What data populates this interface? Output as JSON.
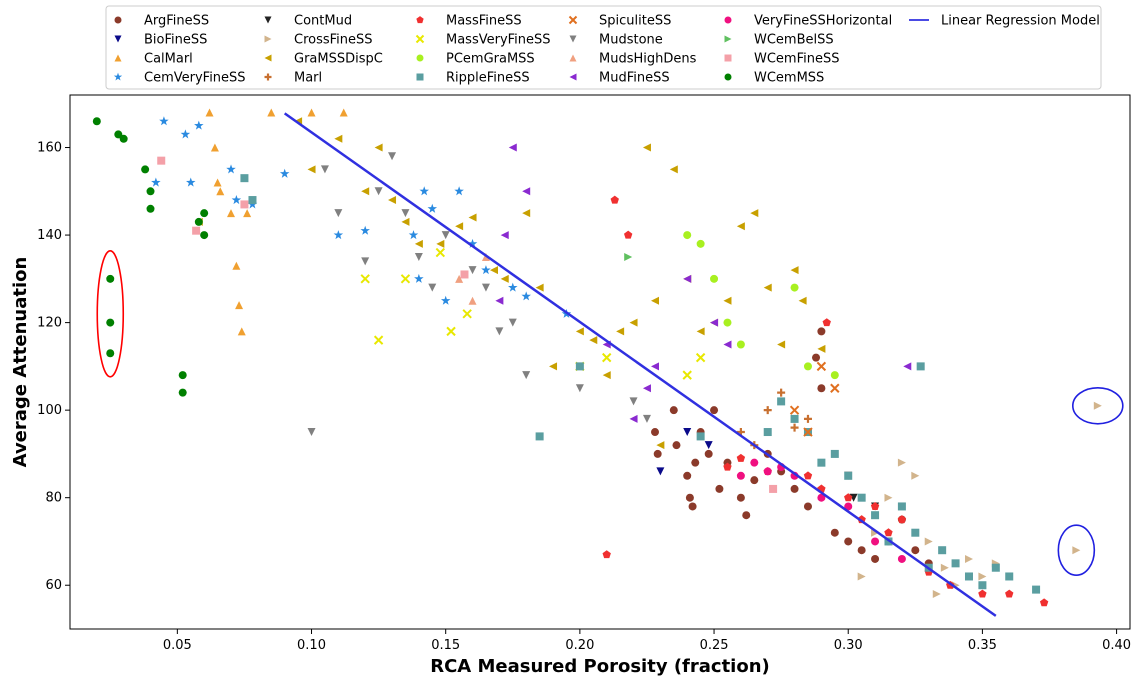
{
  "chart_data": {
    "type": "scatter",
    "title": "",
    "xlabel": "RCA Measured Porosity (fraction)",
    "ylabel": "Average Attenuation",
    "xlim": [
      0.01,
      0.405
    ],
    "ylim": [
      50,
      172
    ],
    "xticks": [
      "0.05",
      "0.10",
      "0.15",
      "0.20",
      "0.25",
      "0.30",
      "0.35",
      "0.40"
    ],
    "yticks": [
      "60",
      "80",
      "100",
      "120",
      "140",
      "160"
    ],
    "grid": false,
    "legend_position": "top",
    "series": [
      {
        "name": "ArgFineSS",
        "color": "#8b3a2a",
        "marker": "circle",
        "points": [
          [
            0.228,
            95
          ],
          [
            0.229,
            90
          ],
          [
            0.235,
            100
          ],
          [
            0.236,
            92
          ],
          [
            0.24,
            85
          ],
          [
            0.241,
            80
          ],
          [
            0.242,
            78
          ],
          [
            0.243,
            88
          ],
          [
            0.245,
            95
          ],
          [
            0.248,
            90
          ],
          [
            0.25,
            100
          ],
          [
            0.252,
            82
          ],
          [
            0.255,
            88
          ],
          [
            0.26,
            80
          ],
          [
            0.262,
            76
          ],
          [
            0.265,
            84
          ],
          [
            0.27,
            90
          ],
          [
            0.275,
            86
          ],
          [
            0.28,
            82
          ],
          [
            0.285,
            78
          ],
          [
            0.288,
            112
          ],
          [
            0.29,
            118
          ],
          [
            0.29,
            105
          ],
          [
            0.295,
            72
          ],
          [
            0.3,
            70
          ],
          [
            0.305,
            68
          ],
          [
            0.31,
            66
          ],
          [
            0.315,
            70
          ],
          [
            0.32,
            75
          ],
          [
            0.325,
            68
          ],
          [
            0.33,
            65
          ]
        ]
      },
      {
        "name": "BioFineSS",
        "color": "#0a0a8a",
        "marker": "triangle-down",
        "points": [
          [
            0.23,
            86
          ],
          [
            0.24,
            95
          ],
          [
            0.248,
            92
          ]
        ]
      },
      {
        "name": "CalMarl",
        "color": "#f0a030",
        "marker": "triangle-up",
        "points": [
          [
            0.062,
            168
          ],
          [
            0.064,
            160
          ],
          [
            0.065,
            152
          ],
          [
            0.066,
            150
          ],
          [
            0.07,
            145
          ],
          [
            0.072,
            133
          ],
          [
            0.073,
            124
          ],
          [
            0.074,
            118
          ],
          [
            0.076,
            145
          ],
          [
            0.085,
            168
          ],
          [
            0.1,
            168
          ],
          [
            0.112,
            168
          ]
        ]
      },
      {
        "name": "CemVeryFineSS",
        "color": "#2a8ae0",
        "marker": "star",
        "points": [
          [
            0.042,
            152
          ],
          [
            0.045,
            166
          ],
          [
            0.053,
            163
          ],
          [
            0.055,
            152
          ],
          [
            0.058,
            165
          ],
          [
            0.07,
            155
          ],
          [
            0.072,
            148
          ],
          [
            0.078,
            147
          ],
          [
            0.09,
            154
          ],
          [
            0.11,
            140
          ],
          [
            0.12,
            141
          ],
          [
            0.138,
            140
          ],
          [
            0.14,
            130
          ],
          [
            0.142,
            150
          ],
          [
            0.145,
            146
          ],
          [
            0.15,
            125
          ],
          [
            0.155,
            150
          ],
          [
            0.16,
            138
          ],
          [
            0.165,
            132
          ],
          [
            0.175,
            128
          ],
          [
            0.18,
            126
          ],
          [
            0.195,
            122
          ]
        ]
      },
      {
        "name": "ContMud",
        "color": "#222222",
        "marker": "triangle-down",
        "points": [
          [
            0.3,
            85
          ],
          [
            0.302,
            80
          ],
          [
            0.31,
            78
          ]
        ]
      },
      {
        "name": "CrossFineSS",
        "color": "#d2b48c",
        "marker": "triangle-right",
        "points": [
          [
            0.305,
            62
          ],
          [
            0.31,
            72
          ],
          [
            0.315,
            80
          ],
          [
            0.32,
            88
          ],
          [
            0.325,
            85
          ],
          [
            0.33,
            70
          ],
          [
            0.333,
            58
          ],
          [
            0.336,
            64
          ],
          [
            0.34,
            60
          ],
          [
            0.345,
            66
          ],
          [
            0.35,
            62
          ],
          [
            0.355,
            65
          ],
          [
            0.385,
            68
          ],
          [
            0.393,
            101
          ]
        ]
      },
      {
        "name": "GraMSSDispC",
        "color": "#c8a000",
        "marker": "triangle-left",
        "points": [
          [
            0.058,
            143
          ],
          [
            0.095,
            166
          ],
          [
            0.1,
            155
          ],
          [
            0.11,
            162
          ],
          [
            0.12,
            150
          ],
          [
            0.125,
            160
          ],
          [
            0.13,
            148
          ],
          [
            0.135,
            143
          ],
          [
            0.14,
            138
          ],
          [
            0.148,
            138
          ],
          [
            0.155,
            142
          ],
          [
            0.16,
            144
          ],
          [
            0.168,
            132
          ],
          [
            0.172,
            130
          ],
          [
            0.18,
            145
          ],
          [
            0.185,
            128
          ],
          [
            0.19,
            110
          ],
          [
            0.2,
            118
          ],
          [
            0.205,
            116
          ],
          [
            0.21,
            108
          ],
          [
            0.215,
            118
          ],
          [
            0.22,
            120
          ],
          [
            0.225,
            160
          ],
          [
            0.228,
            125
          ],
          [
            0.23,
            92
          ],
          [
            0.235,
            155
          ],
          [
            0.24,
            130
          ],
          [
            0.245,
            118
          ],
          [
            0.25,
            120
          ],
          [
            0.255,
            125
          ],
          [
            0.26,
            142
          ],
          [
            0.265,
            145
          ],
          [
            0.27,
            128
          ],
          [
            0.275,
            115
          ],
          [
            0.28,
            132
          ],
          [
            0.283,
            125
          ],
          [
            0.29,
            114
          ]
        ]
      },
      {
        "name": "Marl",
        "color": "#c87030",
        "marker": "plus",
        "points": [
          [
            0.26,
            95
          ],
          [
            0.265,
            92
          ],
          [
            0.27,
            100
          ],
          [
            0.275,
            104
          ],
          [
            0.28,
            96
          ],
          [
            0.285,
            98
          ]
        ]
      },
      {
        "name": "MassFineSS",
        "color": "#f03030",
        "marker": "pentagon",
        "points": [
          [
            0.21,
            67
          ],
          [
            0.213,
            148
          ],
          [
            0.218,
            140
          ],
          [
            0.255,
            87
          ],
          [
            0.26,
            89
          ],
          [
            0.27,
            86
          ],
          [
            0.285,
            85
          ],
          [
            0.29,
            82
          ],
          [
            0.292,
            120
          ],
          [
            0.3,
            80
          ],
          [
            0.305,
            75
          ],
          [
            0.31,
            78
          ],
          [
            0.315,
            72
          ],
          [
            0.32,
            75
          ],
          [
            0.33,
            63
          ],
          [
            0.338,
            60
          ],
          [
            0.35,
            58
          ],
          [
            0.36,
            58
          ],
          [
            0.373,
            56
          ]
        ]
      },
      {
        "name": "MassVeryFineSS",
        "color": "#e8e800",
        "marker": "x",
        "points": [
          [
            0.12,
            130
          ],
          [
            0.125,
            116
          ],
          [
            0.135,
            130
          ],
          [
            0.148,
            136
          ],
          [
            0.152,
            118
          ],
          [
            0.158,
            122
          ],
          [
            0.2,
            110
          ],
          [
            0.21,
            112
          ],
          [
            0.24,
            108
          ],
          [
            0.245,
            112
          ]
        ]
      },
      {
        "name": "PCemGraMSS",
        "color": "#a8f020",
        "marker": "circle",
        "points": [
          [
            0.24,
            140
          ],
          [
            0.245,
            138
          ],
          [
            0.25,
            130
          ],
          [
            0.255,
            120
          ],
          [
            0.26,
            115
          ],
          [
            0.28,
            128
          ],
          [
            0.285,
            110
          ],
          [
            0.295,
            108
          ]
        ]
      },
      {
        "name": "RippleFineSS",
        "color": "#5a9ea0",
        "marker": "square",
        "points": [
          [
            0.075,
            153
          ],
          [
            0.078,
            148
          ],
          [
            0.185,
            94
          ],
          [
            0.2,
            110
          ],
          [
            0.245,
            94
          ],
          [
            0.27,
            95
          ],
          [
            0.275,
            102
          ],
          [
            0.28,
            98
          ],
          [
            0.285,
            95
          ],
          [
            0.29,
            88
          ],
          [
            0.295,
            90
          ],
          [
            0.3,
            85
          ],
          [
            0.305,
            80
          ],
          [
            0.31,
            76
          ],
          [
            0.315,
            70
          ],
          [
            0.32,
            78
          ],
          [
            0.325,
            72
          ],
          [
            0.327,
            110
          ],
          [
            0.33,
            64
          ],
          [
            0.335,
            68
          ],
          [
            0.34,
            65
          ],
          [
            0.345,
            62
          ],
          [
            0.35,
            60
          ],
          [
            0.355,
            64
          ],
          [
            0.36,
            62
          ],
          [
            0.37,
            59
          ]
        ]
      },
      {
        "name": "SpiculiteSS",
        "color": "#e07020",
        "marker": "x",
        "points": [
          [
            0.28,
            100
          ],
          [
            0.285,
            95
          ],
          [
            0.29,
            110
          ],
          [
            0.295,
            105
          ]
        ]
      },
      {
        "name": "Mudstone",
        "color": "#808080",
        "marker": "triangle-down",
        "points": [
          [
            0.1,
            95
          ],
          [
            0.105,
            155
          ],
          [
            0.11,
            145
          ],
          [
            0.12,
            134
          ],
          [
            0.125,
            150
          ],
          [
            0.13,
            158
          ],
          [
            0.135,
            145
          ],
          [
            0.14,
            135
          ],
          [
            0.145,
            128
          ],
          [
            0.15,
            140
          ],
          [
            0.16,
            132
          ],
          [
            0.165,
            128
          ],
          [
            0.17,
            118
          ],
          [
            0.175,
            120
          ],
          [
            0.18,
            108
          ],
          [
            0.2,
            105
          ],
          [
            0.22,
            102
          ],
          [
            0.225,
            98
          ]
        ]
      },
      {
        "name": "MudsHighDens",
        "color": "#f0a080",
        "marker": "triangle-up",
        "points": [
          [
            0.155,
            130
          ],
          [
            0.16,
            125
          ],
          [
            0.165,
            135
          ]
        ]
      },
      {
        "name": "MudFineSS",
        "color": "#8a2ad0",
        "marker": "triangle-left",
        "points": [
          [
            0.17,
            125
          ],
          [
            0.172,
            140
          ],
          [
            0.175,
            160
          ],
          [
            0.18,
            150
          ],
          [
            0.21,
            115
          ],
          [
            0.22,
            98
          ],
          [
            0.225,
            105
          ],
          [
            0.228,
            110
          ],
          [
            0.24,
            130
          ],
          [
            0.25,
            120
          ],
          [
            0.255,
            115
          ],
          [
            0.322,
            110
          ]
        ]
      },
      {
        "name": "VeryFineSSHorizontal",
        "color": "#f01080",
        "marker": "circle",
        "points": [
          [
            0.26,
            85
          ],
          [
            0.265,
            88
          ],
          [
            0.27,
            86
          ],
          [
            0.275,
            87
          ],
          [
            0.28,
            85
          ],
          [
            0.29,
            80
          ],
          [
            0.3,
            78
          ],
          [
            0.31,
            70
          ],
          [
            0.32,
            66
          ]
        ]
      },
      {
        "name": "WCemBelSS",
        "color": "#60c060",
        "marker": "triangle-right",
        "points": [
          [
            0.218,
            135
          ]
        ]
      },
      {
        "name": "WCemFineSS",
        "color": "#f4a0a8",
        "marker": "square",
        "points": [
          [
            0.044,
            157
          ],
          [
            0.057,
            141
          ],
          [
            0.075,
            147
          ],
          [
            0.157,
            131
          ],
          [
            0.272,
            82
          ]
        ]
      },
      {
        "name": "WCemMSS",
        "color": "#008000",
        "marker": "circle",
        "points": [
          [
            0.02,
            166
          ],
          [
            0.025,
            130
          ],
          [
            0.025,
            120
          ],
          [
            0.025,
            113
          ],
          [
            0.028,
            163
          ],
          [
            0.03,
            162
          ],
          [
            0.038,
            155
          ],
          [
            0.04,
            150
          ],
          [
            0.04,
            146
          ],
          [
            0.052,
            108
          ],
          [
            0.052,
            104
          ],
          [
            0.058,
            143
          ],
          [
            0.06,
            145
          ],
          [
            0.06,
            140
          ]
        ]
      }
    ],
    "regression": {
      "name": "Linear Regression Model",
      "color": "#3030e0",
      "x": [
        0.09,
        0.355
      ],
      "y": [
        167.8,
        53
      ]
    },
    "annotations": [
      {
        "shape": "ellipse",
        "color": "#ff0000",
        "x": 0.025,
        "y": 122
      },
      {
        "shape": "ellipse",
        "color": "#2020e0",
        "x": 0.393,
        "y": 101
      },
      {
        "shape": "ellipse",
        "color": "#2020e0",
        "x": 0.385,
        "y": 68
      }
    ]
  }
}
